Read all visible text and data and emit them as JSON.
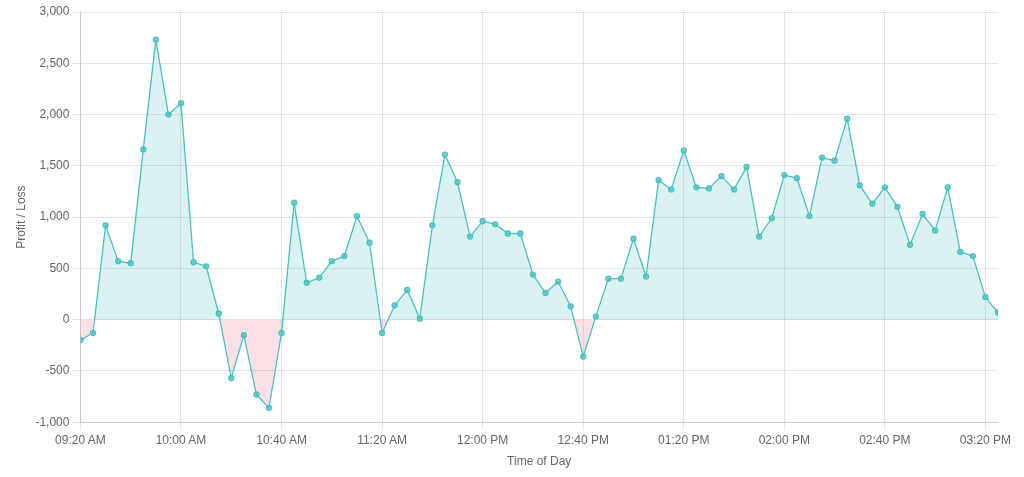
{
  "chart_data": {
    "type": "area",
    "xlabel": "Time of Day",
    "ylabel": "Profit / Loss",
    "x": [
      9.3333,
      9.4167,
      9.5,
      9.5833,
      9.6667,
      9.75,
      9.8333,
      9.9167,
      10,
      10.0833,
      10.1667,
      10.25,
      10.3333,
      10.4167,
      10.5,
      10.5833,
      10.6667,
      10.75,
      10.8333,
      10.9167,
      11,
      11.0833,
      11.1667,
      11.25,
      11.3333,
      11.4167,
      11.5,
      11.5833,
      11.6667,
      11.75,
      11.8333,
      11.9167,
      12,
      12.0833,
      12.1667,
      12.25,
      12.3333,
      12.4167,
      12.5,
      12.5833,
      12.6667,
      12.75,
      12.8333,
      12.9167,
      13,
      13.0833,
      13.1667,
      13.25,
      13.3333,
      13.4167,
      13.5,
      13.5833,
      13.6667,
      13.75,
      13.8333,
      13.9167,
      14,
      14.0833,
      14.1667,
      14.25,
      14.3333,
      14.4167,
      14.5,
      14.5833,
      14.6667,
      14.75,
      14.8333,
      14.9167,
      15,
      15.0833,
      15.1667,
      15.25,
      15.3333,
      15.4167
    ],
    "series": [
      {
        "color": "#4bc0c0",
        "values": [
          -200,
          -130,
          920,
          570,
          550,
          1660,
          2730,
          2000,
          2110,
          560,
          520,
          60,
          -570,
          -150,
          -730,
          -860,
          -130,
          1140,
          360,
          410,
          570,
          620,
          1010,
          750,
          -130,
          140,
          290,
          10,
          920,
          1610,
          1340,
          810,
          960,
          930,
          840,
          840,
          440,
          260,
          370,
          130,
          -360,
          30,
          400,
          400,
          790,
          420,
          1360,
          1270,
          1650,
          1290,
          1280,
          1400,
          1270,
          1490,
          810,
          990,
          1410,
          1380,
          1010,
          1580,
          1550,
          1960,
          1310,
          1130,
          1290,
          1100,
          730,
          1030,
          870,
          1290,
          660,
          620,
          220,
          70
        ]
      }
    ],
    "xlim": [
      9.3333,
      15.4167
    ],
    "xticks": [
      {
        "value": 9.3333,
        "label": "09:20 AM"
      },
      {
        "value": 10,
        "label": "10:00 AM"
      },
      {
        "value": 10.6667,
        "label": "10:40 AM"
      },
      {
        "value": 11.3333,
        "label": "11:20 AM"
      },
      {
        "value": 12,
        "label": "12:00 PM"
      },
      {
        "value": 12.6667,
        "label": "12:40 PM"
      },
      {
        "value": 13.3333,
        "label": "01:20 PM"
      },
      {
        "value": 14,
        "label": "02:00 PM"
      },
      {
        "value": 14.6667,
        "label": "02:40 PM"
      },
      {
        "value": 15.3333,
        "label": "03:20 PM"
      }
    ],
    "ylim": [
      -1000,
      3000
    ],
    "yticks": [
      {
        "value": -1000,
        "label": "-1,000"
      },
      {
        "value": -500,
        "label": "-500"
      },
      {
        "value": 0,
        "label": "0"
      },
      {
        "value": 500,
        "label": "500"
      },
      {
        "value": 1000,
        "label": "1,000"
      },
      {
        "value": 1500,
        "label": "1,500"
      },
      {
        "value": 2000,
        "label": "2,000"
      },
      {
        "value": 2500,
        "label": "2,500"
      },
      {
        "value": 3000,
        "label": "3,000"
      }
    ],
    "grid": true,
    "marker": "circle",
    "line_style": "solid"
  }
}
